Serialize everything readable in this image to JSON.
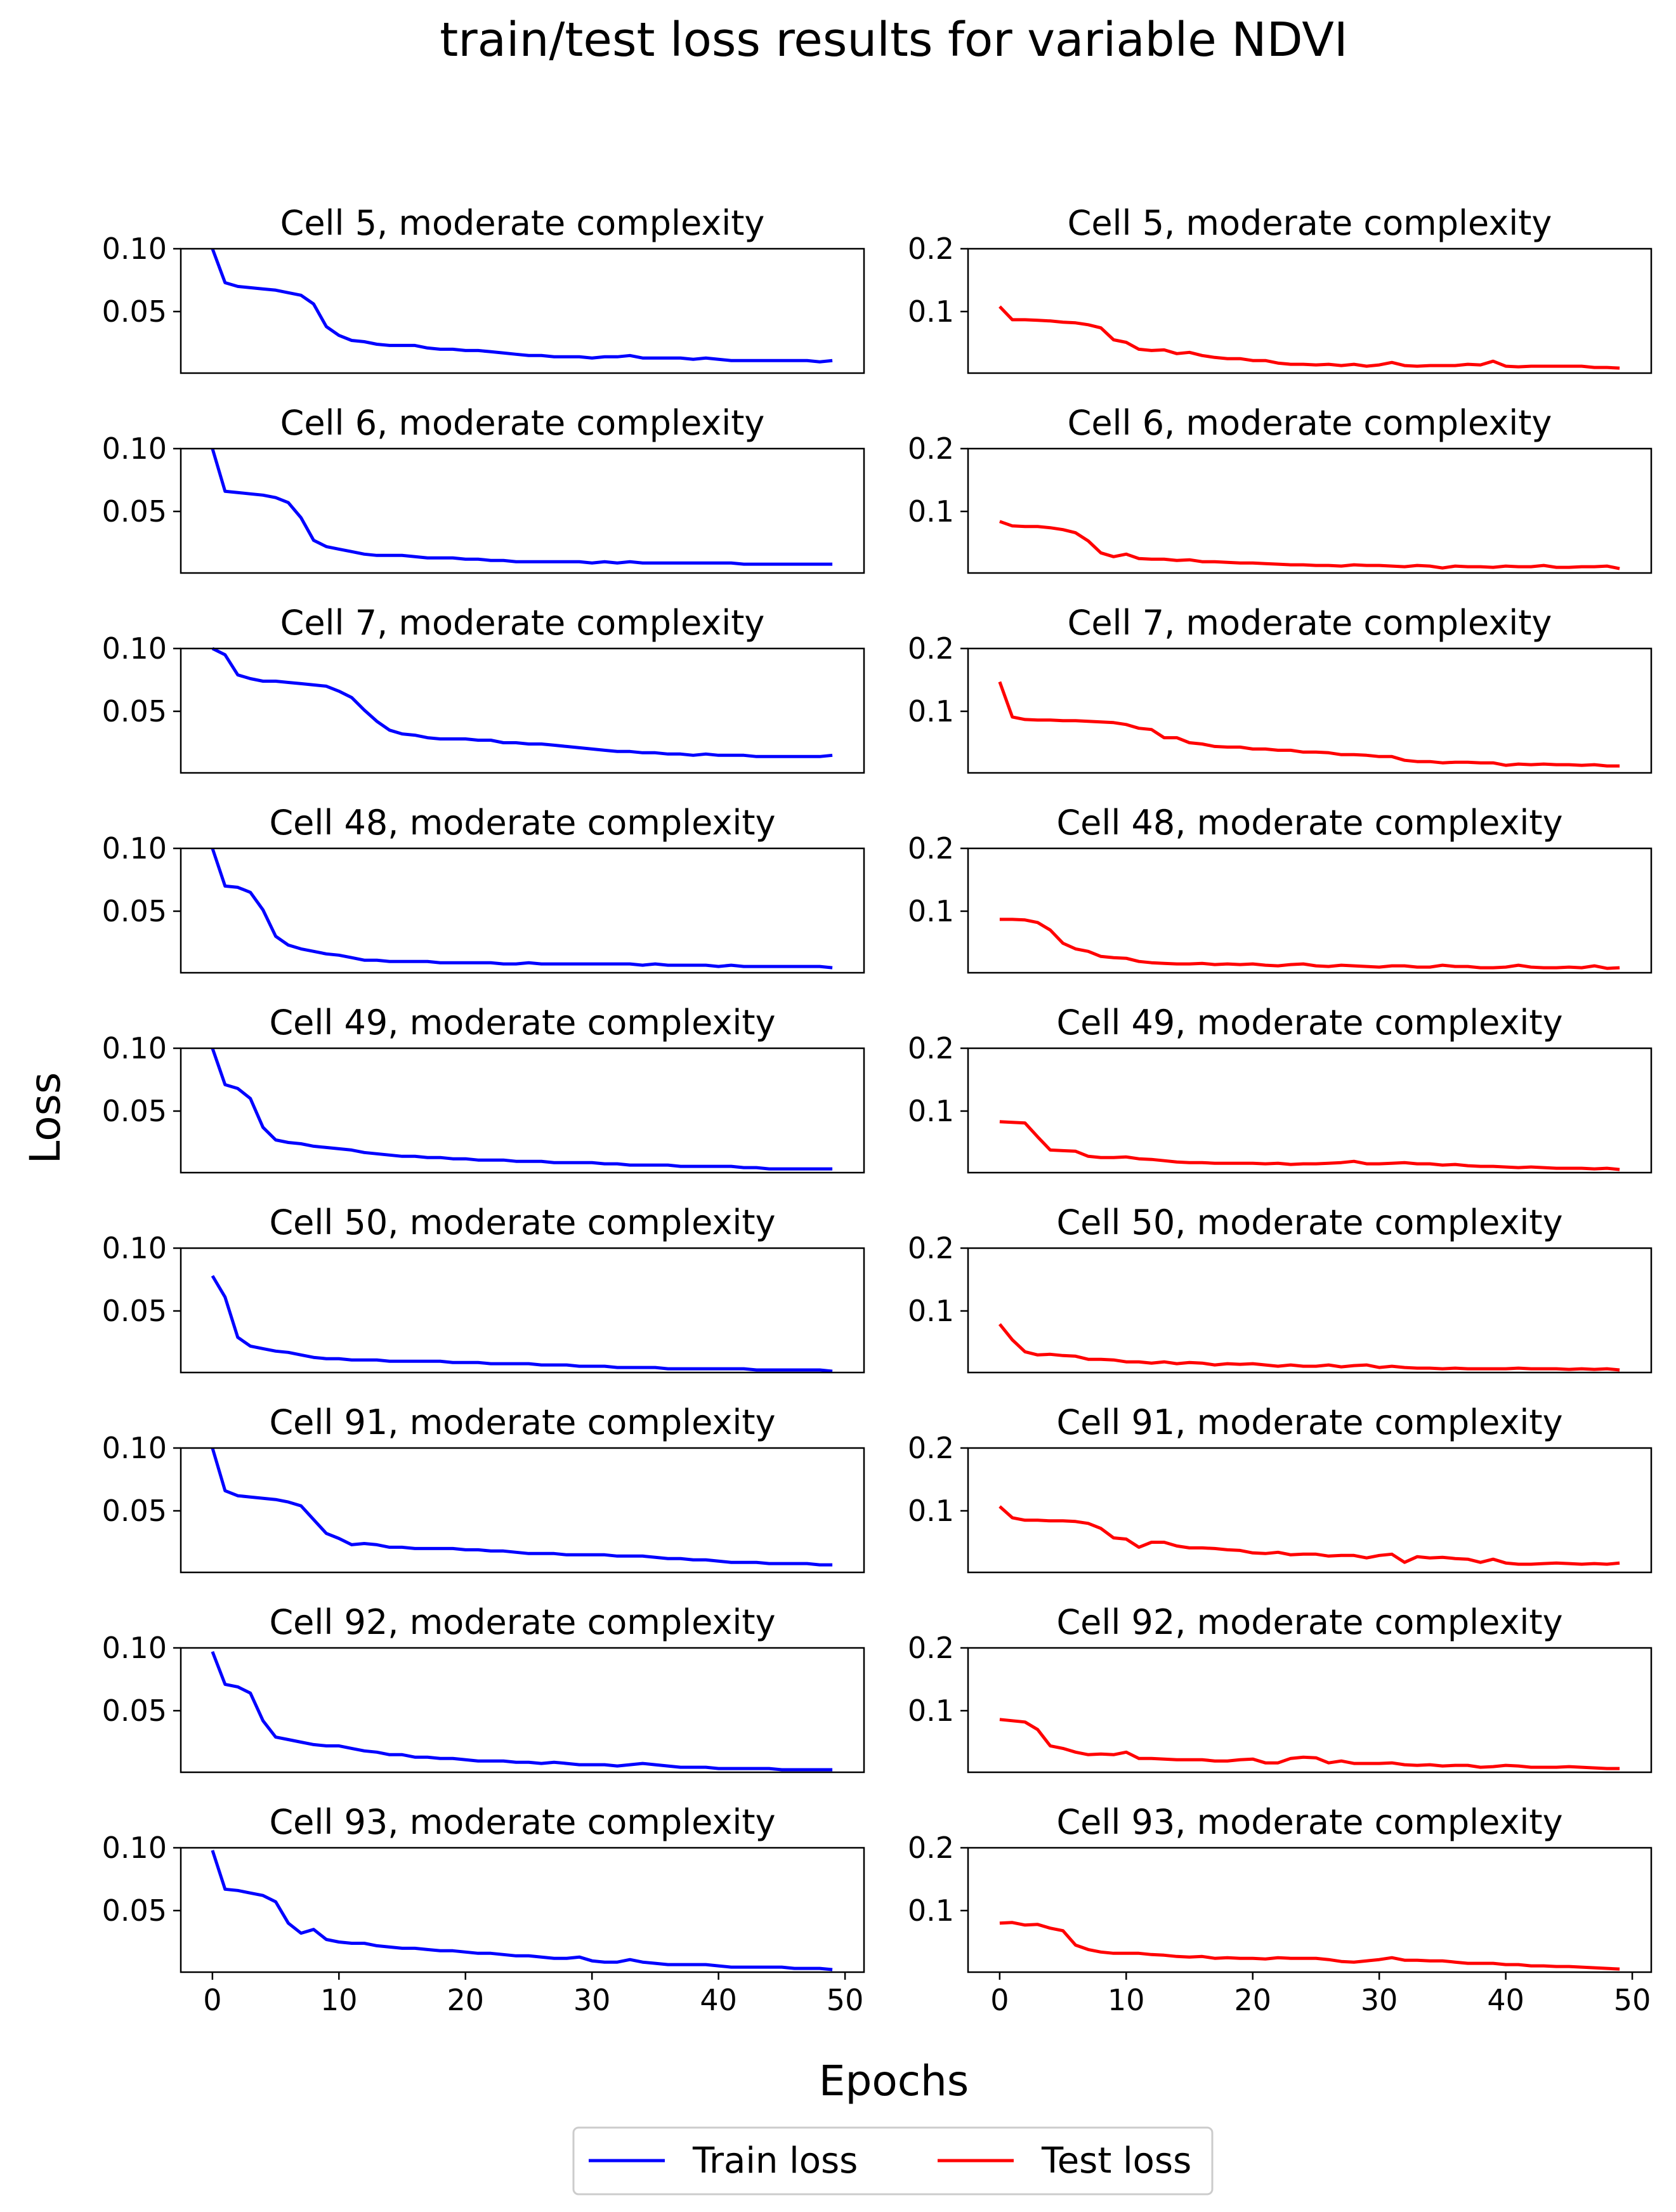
{
  "figure": {
    "title": "train/test loss results for variable NDVI",
    "ylabel": "Loss",
    "xlabel": "Epochs"
  },
  "legend": {
    "location": "bottom-center",
    "entries": [
      {
        "label": "Train loss",
        "color": "#0000ff"
      },
      {
        "label": "Test loss",
        "color": "#ff0000"
      }
    ]
  },
  "colors": {
    "train": "#0000ff",
    "test": "#ff0000",
    "axes": "#000000",
    "background": "#ffffff"
  },
  "chart_data": {
    "type": "line",
    "title": "train/test loss results for variable NDVI",
    "xlabel": "Epochs",
    "ylabel": "Loss",
    "grid": false,
    "layout": "9 rows x 2 columns; left column Train loss, right column Test loss; x tick labels only on bottom row",
    "xlim": [
      -2.5,
      51.5
    ],
    "xticks": [
      0,
      10,
      20,
      30,
      40,
      50
    ],
    "train_ylim": [
      0.001,
      0.1
    ],
    "train_yticks": [
      0.05,
      0.1
    ],
    "train_ytick_labels": [
      "0.05",
      "0.10"
    ],
    "test_ylim": [
      0.002,
      0.2
    ],
    "test_yticks": [
      0.1,
      0.2
    ],
    "test_ytick_labels": [
      "0.1",
      "0.2"
    ],
    "panels": [
      {
        "cell": "Cell 5, moderate complexity",
        "train": [
          0.105,
          0.073,
          0.07,
          0.069,
          0.068,
          0.067,
          0.065,
          0.063,
          0.056,
          0.038,
          0.031,
          0.027,
          0.026,
          0.024,
          0.023,
          0.023,
          0.023,
          0.021,
          0.02,
          0.02,
          0.019,
          0.019,
          0.018,
          0.017,
          0.016,
          0.015,
          0.015,
          0.014,
          0.014,
          0.014,
          0.013,
          0.014,
          0.014,
          0.015,
          0.013,
          0.013,
          0.013,
          0.013,
          0.012,
          0.013,
          0.012,
          0.011,
          0.011,
          0.011,
          0.011,
          0.011,
          0.011,
          0.011,
          0.01,
          0.011
        ],
        "test": [
          0.108,
          0.087,
          0.087,
          0.086,
          0.085,
          0.083,
          0.082,
          0.079,
          0.074,
          0.055,
          0.051,
          0.04,
          0.038,
          0.039,
          0.033,
          0.035,
          0.03,
          0.027,
          0.025,
          0.025,
          0.022,
          0.022,
          0.018,
          0.016,
          0.016,
          0.015,
          0.016,
          0.014,
          0.016,
          0.013,
          0.015,
          0.019,
          0.014,
          0.013,
          0.014,
          0.014,
          0.014,
          0.016,
          0.015,
          0.021,
          0.013,
          0.012,
          0.013,
          0.013,
          0.013,
          0.013,
          0.013,
          0.011,
          0.011,
          0.01
        ]
      },
      {
        "cell": "Cell 6, moderate complexity",
        "train": [
          0.105,
          0.066,
          0.065,
          0.064,
          0.063,
          0.061,
          0.057,
          0.045,
          0.027,
          0.022,
          0.02,
          0.018,
          0.016,
          0.015,
          0.015,
          0.015,
          0.014,
          0.013,
          0.013,
          0.013,
          0.012,
          0.012,
          0.011,
          0.011,
          0.01,
          0.01,
          0.01,
          0.01,
          0.01,
          0.01,
          0.009,
          0.01,
          0.009,
          0.01,
          0.009,
          0.009,
          0.009,
          0.009,
          0.009,
          0.009,
          0.009,
          0.009,
          0.008,
          0.008,
          0.008,
          0.008,
          0.008,
          0.008,
          0.008,
          0.008
        ],
        "test": [
          0.084,
          0.077,
          0.076,
          0.076,
          0.074,
          0.071,
          0.066,
          0.053,
          0.034,
          0.028,
          0.032,
          0.025,
          0.024,
          0.024,
          0.022,
          0.023,
          0.02,
          0.02,
          0.019,
          0.018,
          0.018,
          0.017,
          0.016,
          0.015,
          0.015,
          0.014,
          0.014,
          0.013,
          0.015,
          0.014,
          0.014,
          0.013,
          0.012,
          0.014,
          0.013,
          0.01,
          0.013,
          0.012,
          0.012,
          0.011,
          0.013,
          0.012,
          0.012,
          0.014,
          0.011,
          0.011,
          0.012,
          0.012,
          0.013,
          0.009
        ]
      },
      {
        "cell": "Cell 7, moderate complexity",
        "train": [
          0.105,
          0.095,
          0.079,
          0.076,
          0.074,
          0.074,
          0.073,
          0.072,
          0.071,
          0.07,
          0.066,
          0.061,
          0.051,
          0.042,
          0.035,
          0.032,
          0.031,
          0.029,
          0.028,
          0.028,
          0.028,
          0.027,
          0.027,
          0.025,
          0.025,
          0.024,
          0.024,
          0.023,
          0.022,
          0.021,
          0.02,
          0.019,
          0.018,
          0.018,
          0.017,
          0.017,
          0.016,
          0.016,
          0.015,
          0.016,
          0.015,
          0.015,
          0.015,
          0.014,
          0.014,
          0.014,
          0.014,
          0.014,
          0.014,
          0.015
        ],
        "test": [
          0.147,
          0.091,
          0.087,
          0.086,
          0.086,
          0.085,
          0.085,
          0.084,
          0.083,
          0.082,
          0.079,
          0.073,
          0.071,
          0.058,
          0.058,
          0.05,
          0.048,
          0.044,
          0.043,
          0.043,
          0.04,
          0.04,
          0.038,
          0.038,
          0.035,
          0.035,
          0.034,
          0.031,
          0.031,
          0.03,
          0.028,
          0.028,
          0.022,
          0.02,
          0.02,
          0.018,
          0.019,
          0.019,
          0.018,
          0.018,
          0.014,
          0.016,
          0.015,
          0.016,
          0.015,
          0.015,
          0.014,
          0.015,
          0.013,
          0.013
        ]
      },
      {
        "cell": "Cell 48, moderate complexity",
        "train": [
          0.105,
          0.07,
          0.069,
          0.065,
          0.051,
          0.03,
          0.023,
          0.02,
          0.018,
          0.016,
          0.015,
          0.013,
          0.011,
          0.011,
          0.01,
          0.01,
          0.01,
          0.01,
          0.009,
          0.009,
          0.009,
          0.009,
          0.009,
          0.008,
          0.008,
          0.009,
          0.008,
          0.008,
          0.008,
          0.008,
          0.008,
          0.008,
          0.008,
          0.008,
          0.007,
          0.008,
          0.007,
          0.007,
          0.007,
          0.007,
          0.006,
          0.007,
          0.006,
          0.006,
          0.006,
          0.006,
          0.006,
          0.006,
          0.006,
          0.005
        ],
        "test": [
          0.087,
          0.087,
          0.086,
          0.082,
          0.07,
          0.049,
          0.04,
          0.036,
          0.028,
          0.026,
          0.025,
          0.02,
          0.018,
          0.017,
          0.016,
          0.016,
          0.017,
          0.015,
          0.016,
          0.015,
          0.016,
          0.014,
          0.013,
          0.015,
          0.016,
          0.013,
          0.012,
          0.014,
          0.013,
          0.012,
          0.011,
          0.013,
          0.013,
          0.011,
          0.011,
          0.014,
          0.012,
          0.012,
          0.01,
          0.01,
          0.011,
          0.014,
          0.011,
          0.01,
          0.01,
          0.011,
          0.01,
          0.013,
          0.009,
          0.01
        ]
      },
      {
        "cell": "Cell 49, moderate complexity",
        "train": [
          0.105,
          0.071,
          0.068,
          0.06,
          0.037,
          0.027,
          0.025,
          0.024,
          0.022,
          0.021,
          0.02,
          0.019,
          0.017,
          0.016,
          0.015,
          0.014,
          0.014,
          0.013,
          0.013,
          0.012,
          0.012,
          0.011,
          0.011,
          0.011,
          0.01,
          0.01,
          0.01,
          0.009,
          0.009,
          0.009,
          0.009,
          0.008,
          0.008,
          0.007,
          0.007,
          0.007,
          0.007,
          0.006,
          0.006,
          0.006,
          0.006,
          0.006,
          0.005,
          0.005,
          0.004,
          0.004,
          0.004,
          0.004,
          0.004,
          0.004
        ],
        "test": [
          0.083,
          0.082,
          0.081,
          0.059,
          0.038,
          0.037,
          0.036,
          0.028,
          0.026,
          0.026,
          0.027,
          0.024,
          0.023,
          0.021,
          0.019,
          0.018,
          0.018,
          0.017,
          0.017,
          0.017,
          0.017,
          0.016,
          0.017,
          0.015,
          0.016,
          0.016,
          0.017,
          0.018,
          0.02,
          0.016,
          0.016,
          0.017,
          0.018,
          0.016,
          0.016,
          0.014,
          0.015,
          0.013,
          0.012,
          0.012,
          0.011,
          0.01,
          0.011,
          0.01,
          0.009,
          0.009,
          0.009,
          0.008,
          0.009,
          0.007
        ]
      },
      {
        "cell": "Cell 50, moderate complexity",
        "train": [
          0.078,
          0.061,
          0.029,
          0.022,
          0.02,
          0.018,
          0.017,
          0.015,
          0.013,
          0.012,
          0.012,
          0.011,
          0.011,
          0.011,
          0.01,
          0.01,
          0.01,
          0.01,
          0.01,
          0.009,
          0.009,
          0.009,
          0.008,
          0.008,
          0.008,
          0.008,
          0.007,
          0.007,
          0.007,
          0.006,
          0.006,
          0.006,
          0.005,
          0.005,
          0.005,
          0.005,
          0.004,
          0.004,
          0.004,
          0.004,
          0.004,
          0.004,
          0.004,
          0.003,
          0.003,
          0.003,
          0.003,
          0.003,
          0.003,
          0.002
        ],
        "test": [
          0.079,
          0.054,
          0.035,
          0.03,
          0.031,
          0.029,
          0.028,
          0.023,
          0.023,
          0.022,
          0.019,
          0.019,
          0.017,
          0.019,
          0.016,
          0.018,
          0.017,
          0.014,
          0.016,
          0.015,
          0.016,
          0.014,
          0.012,
          0.014,
          0.012,
          0.012,
          0.014,
          0.011,
          0.013,
          0.014,
          0.01,
          0.012,
          0.01,
          0.009,
          0.009,
          0.008,
          0.009,
          0.008,
          0.008,
          0.008,
          0.008,
          0.009,
          0.008,
          0.008,
          0.008,
          0.007,
          0.008,
          0.007,
          0.008,
          0.006
        ]
      },
      {
        "cell": "Cell 91, moderate complexity",
        "train": [
          0.105,
          0.066,
          0.062,
          0.061,
          0.06,
          0.059,
          0.057,
          0.054,
          0.043,
          0.032,
          0.028,
          0.023,
          0.024,
          0.023,
          0.021,
          0.021,
          0.02,
          0.02,
          0.02,
          0.02,
          0.019,
          0.019,
          0.018,
          0.018,
          0.017,
          0.016,
          0.016,
          0.016,
          0.015,
          0.015,
          0.015,
          0.015,
          0.014,
          0.014,
          0.014,
          0.013,
          0.012,
          0.012,
          0.011,
          0.011,
          0.01,
          0.009,
          0.009,
          0.009,
          0.008,
          0.008,
          0.008,
          0.008,
          0.007,
          0.007
        ],
        "test": [
          0.107,
          0.089,
          0.085,
          0.085,
          0.084,
          0.084,
          0.083,
          0.08,
          0.072,
          0.057,
          0.055,
          0.042,
          0.05,
          0.05,
          0.044,
          0.041,
          0.041,
          0.04,
          0.038,
          0.037,
          0.033,
          0.032,
          0.034,
          0.03,
          0.031,
          0.031,
          0.028,
          0.029,
          0.029,
          0.025,
          0.029,
          0.031,
          0.018,
          0.027,
          0.025,
          0.026,
          0.024,
          0.023,
          0.018,
          0.023,
          0.017,
          0.015,
          0.015,
          0.016,
          0.017,
          0.016,
          0.015,
          0.016,
          0.015,
          0.017
        ]
      },
      {
        "cell": "Cell 92, moderate complexity",
        "train": [
          0.097,
          0.071,
          0.069,
          0.064,
          0.042,
          0.029,
          0.027,
          0.025,
          0.023,
          0.022,
          0.022,
          0.02,
          0.018,
          0.017,
          0.015,
          0.015,
          0.013,
          0.013,
          0.012,
          0.012,
          0.011,
          0.01,
          0.01,
          0.01,
          0.009,
          0.009,
          0.008,
          0.009,
          0.008,
          0.007,
          0.007,
          0.007,
          0.006,
          0.007,
          0.008,
          0.007,
          0.006,
          0.005,
          0.005,
          0.005,
          0.004,
          0.004,
          0.004,
          0.004,
          0.004,
          0.003,
          0.003,
          0.003,
          0.003,
          0.003
        ],
        "test": [
          0.086,
          0.084,
          0.082,
          0.07,
          0.044,
          0.04,
          0.034,
          0.03,
          0.031,
          0.03,
          0.034,
          0.024,
          0.024,
          0.023,
          0.022,
          0.022,
          0.022,
          0.02,
          0.02,
          0.022,
          0.023,
          0.017,
          0.017,
          0.024,
          0.026,
          0.025,
          0.017,
          0.02,
          0.016,
          0.016,
          0.016,
          0.017,
          0.014,
          0.013,
          0.014,
          0.012,
          0.013,
          0.013,
          0.01,
          0.011,
          0.013,
          0.012,
          0.01,
          0.01,
          0.01,
          0.011,
          0.01,
          0.009,
          0.008,
          0.008
        ]
      },
      {
        "cell": "Cell 93, moderate complexity",
        "train": [
          0.098,
          0.067,
          0.066,
          0.064,
          0.062,
          0.057,
          0.04,
          0.032,
          0.035,
          0.027,
          0.025,
          0.024,
          0.024,
          0.022,
          0.021,
          0.02,
          0.02,
          0.019,
          0.018,
          0.018,
          0.017,
          0.016,
          0.016,
          0.015,
          0.014,
          0.014,
          0.013,
          0.012,
          0.012,
          0.013,
          0.01,
          0.009,
          0.009,
          0.011,
          0.009,
          0.008,
          0.007,
          0.007,
          0.007,
          0.007,
          0.006,
          0.005,
          0.005,
          0.005,
          0.005,
          0.005,
          0.004,
          0.004,
          0.004,
          0.003
        ],
        "test": [
          0.08,
          0.081,
          0.077,
          0.078,
          0.072,
          0.068,
          0.045,
          0.038,
          0.034,
          0.032,
          0.032,
          0.032,
          0.03,
          0.029,
          0.027,
          0.026,
          0.027,
          0.024,
          0.025,
          0.024,
          0.024,
          0.023,
          0.025,
          0.024,
          0.024,
          0.024,
          0.022,
          0.019,
          0.018,
          0.02,
          0.022,
          0.025,
          0.021,
          0.021,
          0.02,
          0.02,
          0.018,
          0.016,
          0.016,
          0.016,
          0.014,
          0.014,
          0.012,
          0.012,
          0.011,
          0.011,
          0.01,
          0.009,
          0.008,
          0.007
        ]
      }
    ]
  }
}
